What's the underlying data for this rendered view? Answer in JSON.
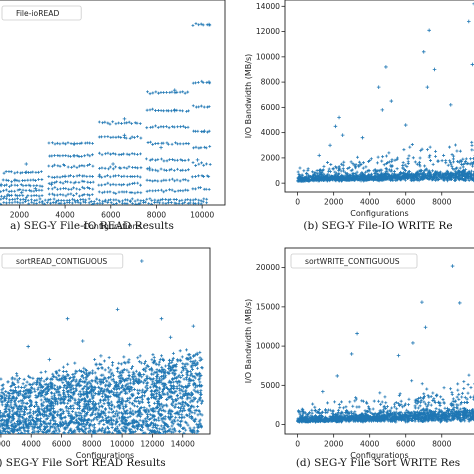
{
  "chart_data": [
    {
      "type": "scatter",
      "caption": "a) SEG-Y File-IO READ Results",
      "legend": "File-ioREAD",
      "legend_position": "top-left",
      "xlabel": "Configurations",
      "ylabel": "",
      "xticks": [
        2000,
        4000,
        6000,
        8000,
        10000
      ],
      "yticks": [],
      "xlim": [
        -600,
        11000
      ],
      "ylim": [
        0,
        100
      ],
      "grid": false,
      "color": "#1f77b4",
      "series": [
        {
          "kind": "bands",
          "points": [
            {
              "x": 300,
              "y": 2
            },
            {
              "x": 900,
              "y": 3
            },
            {
              "x": 1500,
              "y": 5
            },
            {
              "x": 2100,
              "y": 6
            },
            {
              "x": 2700,
              "y": 8
            },
            {
              "x": 1200,
              "y": 10
            },
            {
              "x": 1800,
              "y": 12
            },
            {
              "x": 2300,
              "y": 16
            },
            {
              "x": 2300,
              "y": 20
            },
            {
              "x": 3400,
              "y": 10
            },
            {
              "x": 4000,
              "y": 14
            },
            {
              "x": 4400,
              "y": 24
            },
            {
              "x": 4400,
              "y": 30
            },
            {
              "x": 5500,
              "y": 14
            },
            {
              "x": 6100,
              "y": 20
            },
            {
              "x": 6600,
              "y": 34
            },
            {
              "x": 6600,
              "y": 42
            },
            {
              "x": 7700,
              "y": 18
            },
            {
              "x": 8200,
              "y": 28
            },
            {
              "x": 8800,
              "y": 46
            },
            {
              "x": 8800,
              "y": 56
            },
            {
              "x": 9800,
              "y": 22
            },
            {
              "x": 10100,
              "y": 36
            },
            {
              "x": 10300,
              "y": 60
            },
            {
              "x": 10300,
              "y": 88
            }
          ]
        }
      ]
    },
    {
      "type": "scatter",
      "caption": "(b) SEG-Y File-IO WRITE Re",
      "legend": "",
      "xlabel": "Configurations",
      "ylabel": "I/O Bandwidth (MB/s)",
      "xticks": [
        0,
        2000,
        4000,
        6000,
        8000
      ],
      "yticks": [
        0,
        2000,
        4000,
        6000,
        8000,
        10000,
        12000,
        14000
      ],
      "xlim": [
        -700,
        10400
      ],
      "ylim": [
        -700,
        14500
      ],
      "grid": false,
      "color": "#1f77b4",
      "series": [
        {
          "points": [
            {
              "x": 2300,
              "y": 5200
            },
            {
              "x": 2100,
              "y": 4500
            },
            {
              "x": 2500,
              "y": 3800
            },
            {
              "x": 1800,
              "y": 3000
            },
            {
              "x": 4900,
              "y": 9200
            },
            {
              "x": 4500,
              "y": 7600
            },
            {
              "x": 5200,
              "y": 6500
            },
            {
              "x": 4700,
              "y": 5800
            },
            {
              "x": 7300,
              "y": 12100
            },
            {
              "x": 7000,
              "y": 10400
            },
            {
              "x": 7600,
              "y": 9000
            },
            {
              "x": 7200,
              "y": 7600
            },
            {
              "x": 9800,
              "y": 14200
            },
            {
              "x": 9500,
              "y": 12800
            },
            {
              "x": 10000,
              "y": 11000
            },
            {
              "x": 9700,
              "y": 9400
            },
            {
              "x": 1200,
              "y": 2200
            },
            {
              "x": 3600,
              "y": 3600
            },
            {
              "x": 6000,
              "y": 4600
            },
            {
              "x": 8500,
              "y": 6200
            }
          ]
        }
      ]
    },
    {
      "type": "scatter",
      "caption": ") SEG-Y File Sort READ Results",
      "legend": "sortREAD_CONTIGUOUS",
      "legend_position": "top-left",
      "xlabel": "Configurations",
      "ylabel": "",
      "xticks": [
        2000,
        4000,
        6000,
        8000,
        10000,
        12000,
        14000
      ],
      "yticks": [],
      "xlim": [
        -700,
        15800
      ],
      "ylim": [
        0,
        100
      ],
      "grid": false,
      "color": "#1f77b4",
      "series": [
        {
          "points": [
            {
              "x": 11300,
              "y": 93
            },
            {
              "x": 6400,
              "y": 62
            },
            {
              "x": 9700,
              "y": 67
            },
            {
              "x": 12600,
              "y": 62
            },
            {
              "x": 14700,
              "y": 58
            },
            {
              "x": 3800,
              "y": 47
            },
            {
              "x": 7400,
              "y": 50
            },
            {
              "x": 10500,
              "y": 48
            },
            {
              "x": 13200,
              "y": 52
            },
            {
              "x": 1800,
              "y": 36
            },
            {
              "x": 5200,
              "y": 40
            },
            {
              "x": 8600,
              "y": 42
            }
          ]
        }
      ]
    },
    {
      "type": "scatter",
      "caption": "(d) SEG-Y File Sort WRITE Res",
      "legend": "sortWRITE_CONTIGUOUS",
      "legend_position": "top-left",
      "xlabel": "Configurations",
      "ylabel": "I/O Bandwidth (MB/s)",
      "xticks": [
        0,
        2000,
        4000,
        6000,
        8000
      ],
      "yticks": [
        0,
        5000,
        10000,
        15000,
        20000
      ],
      "xlim": [
        -700,
        10400
      ],
      "ylim": [
        -1200,
        22500
      ],
      "grid": false,
      "color": "#1f77b4",
      "series": [
        {
          "points": [
            {
              "x": 8600,
              "y": 20200
            },
            {
              "x": 3300,
              "y": 11600
            },
            {
              "x": 3000,
              "y": 9000
            },
            {
              "x": 6900,
              "y": 15600
            },
            {
              "x": 7100,
              "y": 12400
            },
            {
              "x": 9000,
              "y": 15500
            },
            {
              "x": 9900,
              "y": 17300
            },
            {
              "x": 10100,
              "y": 13600
            },
            {
              "x": 5600,
              "y": 8800
            },
            {
              "x": 6400,
              "y": 10400
            },
            {
              "x": 1400,
              "y": 4200
            },
            {
              "x": 2200,
              "y": 6200
            }
          ]
        }
      ]
    }
  ]
}
